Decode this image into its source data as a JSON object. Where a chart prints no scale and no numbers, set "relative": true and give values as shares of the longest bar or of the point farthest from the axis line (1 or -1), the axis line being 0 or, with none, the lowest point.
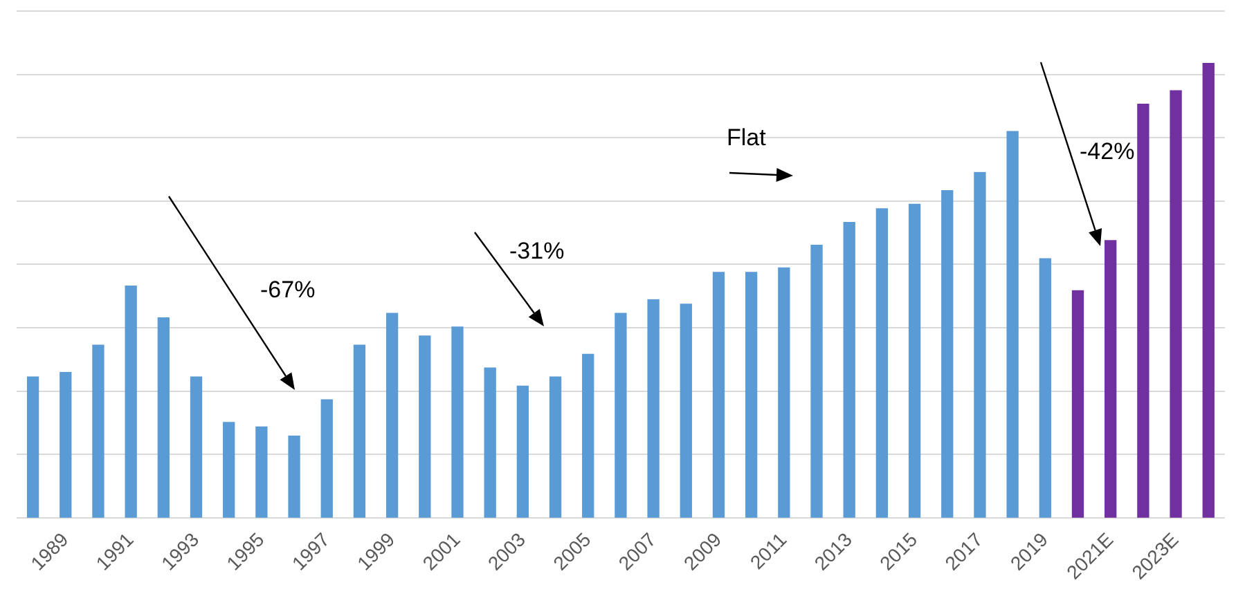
{
  "chart_data": {
    "type": "bar",
    "relative": true,
    "grid": "y",
    "tick_labels": "x",
    "categories": [
      null,
      "1989",
      null,
      "1991",
      null,
      "1993",
      null,
      "1995",
      null,
      "1997",
      null,
      "1999",
      null,
      "2001",
      null,
      "2003",
      null,
      "2005",
      null,
      "2007",
      null,
      "2009",
      null,
      "2011",
      null,
      "2013",
      null,
      "2015",
      null,
      "2017",
      null,
      "2019",
      null,
      "2021E",
      null,
      "2023E",
      null
    ],
    "values": [
      0.31,
      0.32,
      0.38,
      0.51,
      0.44,
      0.31,
      0.21,
      0.2,
      0.18,
      0.26,
      0.38,
      0.45,
      0.4,
      0.42,
      0.33,
      0.29,
      0.31,
      0.36,
      0.45,
      0.48,
      0.47,
      0.54,
      0.54,
      0.55,
      0.6,
      0.65,
      0.68,
      0.69,
      0.72,
      0.76,
      0.85,
      0.57,
      0.5,
      0.61,
      0.91,
      0.94,
      1.0
    ],
    "colors": [
      "#5b9bd5",
      "#5b9bd5",
      "#5b9bd5",
      "#5b9bd5",
      "#5b9bd5",
      "#5b9bd5",
      "#5b9bd5",
      "#5b9bd5",
      "#5b9bd5",
      "#5b9bd5",
      "#5b9bd5",
      "#5b9bd5",
      "#5b9bd5",
      "#5b9bd5",
      "#5b9bd5",
      "#5b9bd5",
      "#5b9bd5",
      "#5b9bd5",
      "#5b9bd5",
      "#5b9bd5",
      "#5b9bd5",
      "#5b9bd5",
      "#5b9bd5",
      "#5b9bd5",
      "#5b9bd5",
      "#5b9bd5",
      "#5b9bd5",
      "#5b9bd5",
      "#5b9bd5",
      "#5b9bd5",
      "#5b9bd5",
      "#5b9bd5",
      "#7030a0",
      "#7030a0",
      "#7030a0",
      "#7030a0",
      "#7030a0"
    ],
    "annotations": [
      "-67%",
      "-31%",
      "Flat",
      "-42%"
    ]
  }
}
